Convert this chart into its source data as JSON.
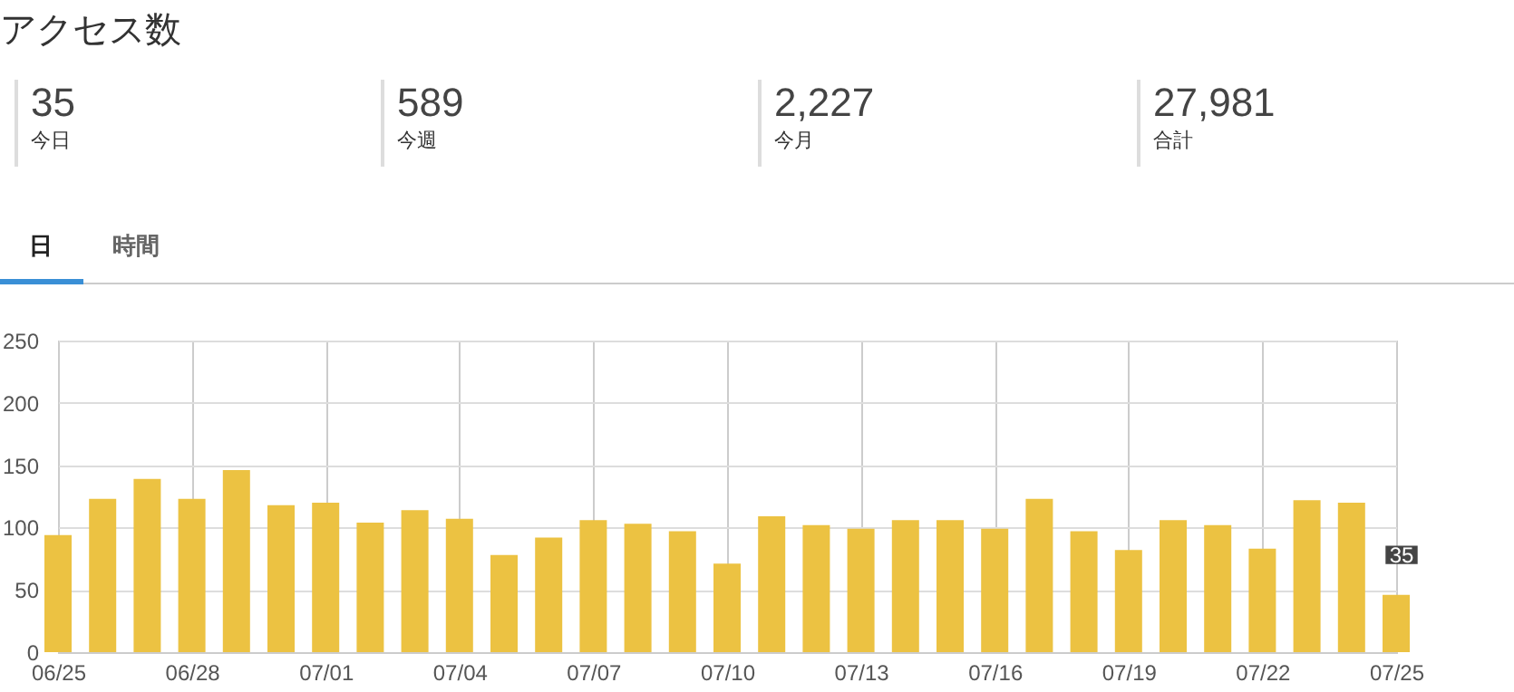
{
  "chart_data": [
    {
      "type": "other",
      "title": "アクセス数",
      "annotations": [
        "35",
        "今日",
        "589",
        "今週",
        "2,227",
        "今月",
        "27,981",
        "合計",
        "日",
        "時間"
      ]
    },
    {
      "type": "bar",
      "categories": [
        "06/25",
        null,
        null,
        "06/28",
        null,
        null,
        "07/01",
        null,
        null,
        "07/04",
        null,
        null,
        "07/07",
        null,
        null,
        "07/10",
        null,
        null,
        "07/13",
        null,
        null,
        "07/16",
        null,
        null,
        "07/19",
        null,
        null,
        "07/22",
        null,
        null,
        "07/25"
      ],
      "values": [
        94,
        123,
        139,
        123,
        146,
        118,
        120,
        104,
        114,
        107,
        78,
        92,
        106,
        103,
        97,
        71,
        109,
        102,
        99,
        106,
        106,
        99,
        123,
        97,
        82,
        106,
        102,
        83,
        122,
        120,
        46
      ],
      "color": "#ecc242",
      "ylim": [
        0,
        250
      ],
      "yticks": [
        0,
        50,
        100,
        150,
        200,
        250
      ],
      "grid": true,
      "annotations": [
        "35"
      ]
    }
  ]
}
